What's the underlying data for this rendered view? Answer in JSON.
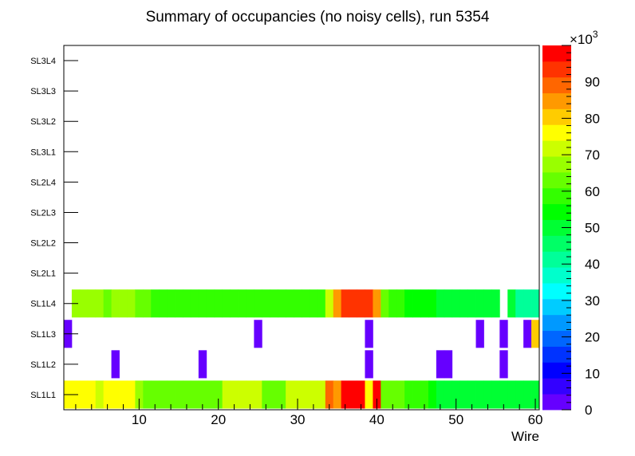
{
  "chart_data": {
    "type": "heatmap",
    "title": "Summary of occupancies (no noisy cells), run 5354",
    "xlabel": "Wire",
    "ylabel": "",
    "xlim": [
      0.5,
      60.5
    ],
    "x_ticks": [
      "10",
      "20",
      "30",
      "40",
      "50",
      "60"
    ],
    "x_tick_values": [
      10,
      20,
      30,
      40,
      50,
      60
    ],
    "y_categories": [
      "SL1L1",
      "SL1L2",
      "SL1L3",
      "SL1L4",
      "SL2L1",
      "SL2L2",
      "SL2L3",
      "SL2L4",
      "SL3L1",
      "SL3L2",
      "SL3L3",
      "SL3L4"
    ],
    "z_range": [
      0,
      100000
    ],
    "z_ticks": [
      "0",
      "10",
      "20",
      "30",
      "40",
      "50",
      "60",
      "70",
      "80",
      "90"
    ],
    "z_tick_values": [
      0,
      10,
      20,
      30,
      40,
      50,
      60,
      70,
      80,
      90
    ],
    "z_multiplier": "×10",
    "z_multiplier_exp": "3",
    "palette": [
      "#6600ff",
      "#3300ff",
      "#0000ff",
      "#0033ff",
      "#0066ff",
      "#0099ff",
      "#00ccff",
      "#00ffff",
      "#00ffcc",
      "#00ff99",
      "#00ff66",
      "#00ff33",
      "#00ff00",
      "#33ff00",
      "#66ff00",
      "#99ff00",
      "#ccff00",
      "#ffff00",
      "#ffcc00",
      "#ff9900",
      "#ff6600",
      "#ff3300",
      "#ff0000"
    ],
    "series": [
      {
        "name": "SL1L1",
        "values": [
          75000,
          75000,
          75000,
          75000,
          72000,
          78000,
          78000,
          78000,
          75000,
          68000,
          65000,
          63000,
          63000,
          63000,
          65000,
          65000,
          63000,
          63000,
          65000,
          65000,
          70000,
          70000,
          70000,
          70000,
          70000,
          65000,
          65000,
          65000,
          72000,
          72000,
          72000,
          72000,
          72000,
          88000,
          83000,
          100000,
          100000,
          100000,
          78000,
          96000,
          63000,
          63000,
          63000,
          60000,
          60000,
          60000,
          55000,
          52000,
          52000,
          52000,
          52000,
          52000,
          52000,
          52000,
          52000,
          48000,
          48000,
          48000,
          48000,
          48000
        ]
      },
      {
        "name": "SL1L2",
        "values": [
          0,
          0,
          0,
          0,
          0,
          0,
          3000,
          0,
          0,
          0,
          0,
          0,
          0,
          0,
          0,
          0,
          0,
          3000,
          0,
          0,
          0,
          0,
          0,
          0,
          0,
          0,
          0,
          0,
          0,
          0,
          0,
          0,
          0,
          0,
          0,
          0,
          0,
          0,
          3000,
          0,
          0,
          0,
          0,
          0,
          0,
          0,
          0,
          3000,
          3000,
          0,
          0,
          0,
          0,
          0,
          0,
          3000,
          0,
          0,
          0,
          0
        ]
      },
      {
        "name": "SL1L3",
        "values": [
          3000,
          0,
          0,
          0,
          0,
          0,
          0,
          0,
          0,
          0,
          0,
          0,
          0,
          0,
          0,
          0,
          0,
          0,
          0,
          0,
          0,
          0,
          0,
          0,
          3000,
          0,
          0,
          0,
          0,
          0,
          0,
          0,
          0,
          0,
          0,
          0,
          0,
          0,
          3000,
          0,
          0,
          0,
          0,
          0,
          0,
          0,
          0,
          0,
          0,
          0,
          0,
          0,
          3000,
          0,
          0,
          3000,
          0,
          0,
          3000,
          79000
        ]
      },
      {
        "name": "SL1L4",
        "values": [
          0,
          68000,
          68000,
          68000,
          68000,
          64000,
          68000,
          68000,
          68000,
          64000,
          64000,
          60000,
          57000,
          57000,
          60000,
          60000,
          57000,
          57000,
          60000,
          60000,
          60000,
          60000,
          60000,
          60000,
          60000,
          60000,
          58000,
          58000,
          58000,
          60000,
          60000,
          60000,
          60000,
          72000,
          86000,
          95000,
          95000,
          95000,
          92000,
          85000,
          63000,
          60000,
          60000,
          56000,
          56000,
          56000,
          54000,
          50000,
          50000,
          50000,
          50000,
          50000,
          50000,
          50000,
          50000,
          0,
          50000,
          43000,
          43000,
          43000
        ]
      },
      {
        "name": "SL2L1",
        "values": []
      },
      {
        "name": "SL2L2",
        "values": []
      },
      {
        "name": "SL2L3",
        "values": []
      },
      {
        "name": "SL2L4",
        "values": []
      },
      {
        "name": "SL3L1",
        "values": []
      },
      {
        "name": "SL3L2",
        "values": []
      },
      {
        "name": "SL3L3",
        "values": []
      },
      {
        "name": "SL3L4",
        "values": []
      }
    ]
  }
}
